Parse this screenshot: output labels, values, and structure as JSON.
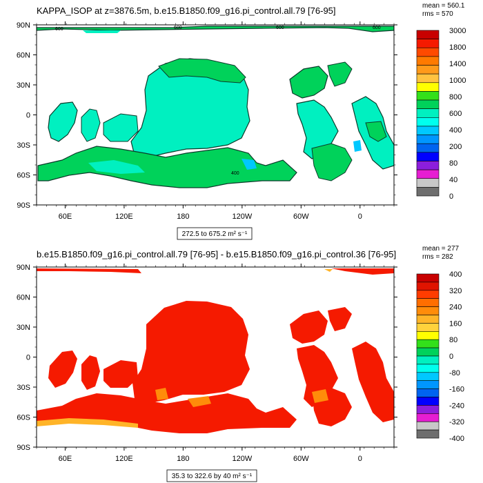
{
  "chart_data": [
    {
      "type": "heatmap",
      "title": "KAPPA_ISOP at z=3876.5m, b.e15.B1850.f09_g16.pi_control.all.79 [76-95]",
      "stats": {
        "mean": "mean = 560.1",
        "rms": "rms = 570"
      },
      "range_label": "272.5 to 675.2",
      "units": "m² s⁻¹",
      "x_ticks": [
        "60E",
        "120E",
        "180",
        "120W",
        "60W",
        "0"
      ],
      "y_ticks": [
        "90N",
        "60N",
        "30N",
        "0",
        "30S",
        "60S",
        "90S"
      ],
      "contour_labels": [
        "600",
        "600",
        "600",
        "600",
        "400"
      ],
      "colorbar_labels": [
        "3000",
        "1800",
        "1400",
        "1000",
        "800",
        "600",
        "400",
        "200",
        "80",
        "40",
        "0"
      ],
      "colorbar_colors": [
        "#c80000",
        "#f51a00",
        "#ff4a00",
        "#ff7a00",
        "#ff9a1a",
        "#ffc340",
        "#ffff00",
        "#33e01a",
        "#00d25a",
        "#00f0c0",
        "#00ffee",
        "#00c8ff",
        "#0096ff",
        "#0064f0",
        "#0000ff",
        "#8c1edc",
        "#e61ed2",
        "#c8c8c8",
        "#6e6e6e"
      ],
      "dominant_values": [
        "600",
        "800"
      ]
    },
    {
      "type": "heatmap",
      "title": "b.e15.B1850.f09_g16.pi_control.all.79 [76-95] - b.e15.B1850.f09_g16.pi_control.36 [76-95]",
      "stats": {
        "mean": "mean = 277",
        "rms": "rms = 282"
      },
      "range_label": "35.3 to 322.6 by 40",
      "units": "m² s⁻¹",
      "x_ticks": [
        "60E",
        "120E",
        "180",
        "120W",
        "60W",
        "0"
      ],
      "y_ticks": [
        "90N",
        "60N",
        "30N",
        "0",
        "30S",
        "60S",
        "90S"
      ],
      "colorbar_labels": [
        "400",
        "320",
        "240",
        "160",
        "80",
        "0",
        "-80",
        "-160",
        "-240",
        "-320",
        "-400"
      ],
      "colorbar_colors": [
        "#c80000",
        "#e01400",
        "#ff3c00",
        "#ff6e00",
        "#ff8c0a",
        "#ffb428",
        "#ffd23c",
        "#ffff00",
        "#33e01a",
        "#00d25a",
        "#00f0c0",
        "#00ffee",
        "#00c8ff",
        "#0096ff",
        "#0064f0",
        "#0000ff",
        "#8c1edc",
        "#e61ed2",
        "#c8c8c8",
        "#6e6e6e"
      ],
      "dominant_values": [
        "240",
        "320"
      ]
    }
  ]
}
